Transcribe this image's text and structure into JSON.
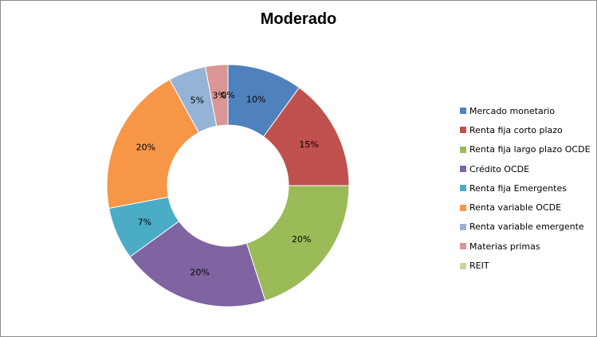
{
  "chart_data": {
    "type": "pie",
    "variant": "donut",
    "title": "Moderado",
    "legend_position": "right",
    "series": [
      {
        "name": "Mercado monetario",
        "value": 10,
        "label": "10%",
        "color": "#4f81bd"
      },
      {
        "name": "Renta fija corto plazo",
        "value": 15,
        "label": "15%",
        "color": "#c0504d"
      },
      {
        "name": "Renta fija largo plazo OCDE",
        "value": 20,
        "label": "20%",
        "color": "#9bbb59"
      },
      {
        "name": "Crédito OCDE",
        "value": 20,
        "label": "20%",
        "color": "#8064a2"
      },
      {
        "name": "Renta fija Emergentes",
        "value": 7,
        "label": "7%",
        "color": "#4bacc6"
      },
      {
        "name": "Renta variable OCDE",
        "value": 20,
        "label": "20%",
        "color": "#f79646"
      },
      {
        "name": "Renta variable emergente",
        "value": 5,
        "label": "5%",
        "color": "#95b3d7"
      },
      {
        "name": "Materias primas",
        "value": 3,
        "label": "3%",
        "color": "#da9694"
      },
      {
        "name": "REIT",
        "value": 0,
        "label": "0%",
        "color": "#c3d69b"
      }
    ]
  }
}
